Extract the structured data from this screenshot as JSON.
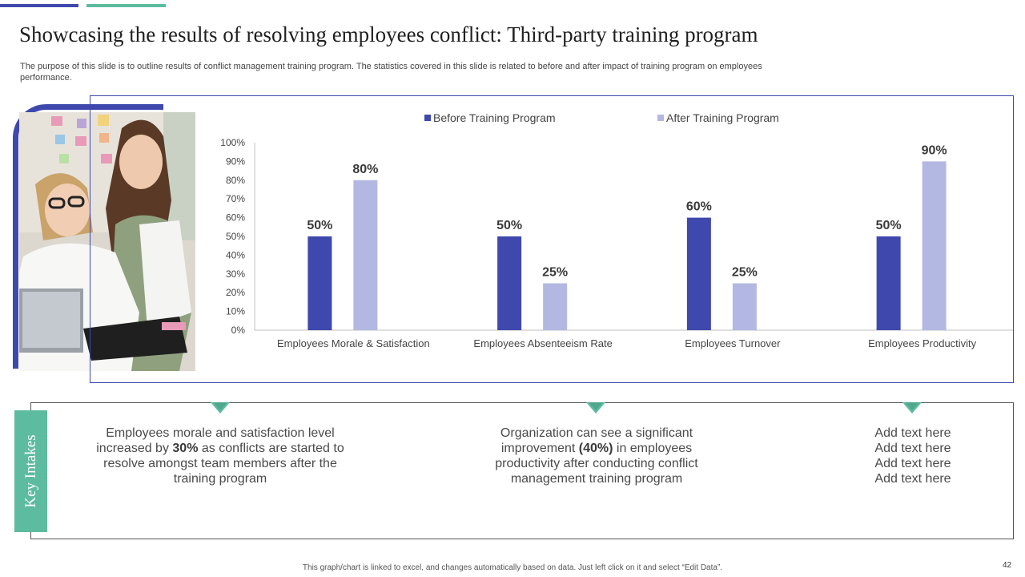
{
  "slide": {
    "title": "Showcasing the results of resolving employees conflict: Third-party training program",
    "subtitle": "The purpose of this slide is to outline results of conflict management training program. The statistics covered in this slide is related to before and after impact of training program on employees performance.",
    "footer_note": "This graph/chart is linked to excel, and changes automatically based on data. Just left click on it and select “Edit Data”.",
    "page_number": "42"
  },
  "colors": {
    "before": "#3f48ad",
    "after": "#b3b8e2",
    "accent_teal": "#5dbb9f",
    "frame_blue": "#3f48ad"
  },
  "chart_data": {
    "type": "bar",
    "categories": [
      "Employees Morale & Satisfaction",
      "Employees Absenteeism Rate",
      "Employees Turnover",
      "Employees Productivity"
    ],
    "series": [
      {
        "name": "Before Training Program",
        "values": [
          50,
          50,
          60,
          50
        ]
      },
      {
        "name": "After Training Program",
        "values": [
          80,
          25,
          25,
          90
        ]
      }
    ],
    "data_labels": [
      [
        "50%",
        "50%",
        "60%",
        "50%"
      ],
      [
        "80%",
        "25%",
        "25%",
        "90%"
      ]
    ],
    "ylim": [
      0,
      100
    ],
    "yticks": [
      "0%",
      "10%",
      "20%",
      "30%",
      "40%",
      "50%",
      "60%",
      "70%",
      "80%",
      "90%",
      "100%"
    ],
    "legend_position": "top",
    "xlabel": "",
    "ylabel": ""
  },
  "key_intakes": {
    "label": "Key Intakes",
    "col1": {
      "pre": "Employees morale and satisfaction level increased by ",
      "bold": "30%",
      "post": " as conflicts are started to resolve amongst team members after the training program"
    },
    "col2": {
      "pre": "Organization can see a significant improvement ",
      "bold": "(40%)",
      "post": " in employees productivity after conducting conflict management training program"
    },
    "col3": [
      "Add text here",
      "Add text here",
      "Add text here",
      "Add text here"
    ]
  }
}
